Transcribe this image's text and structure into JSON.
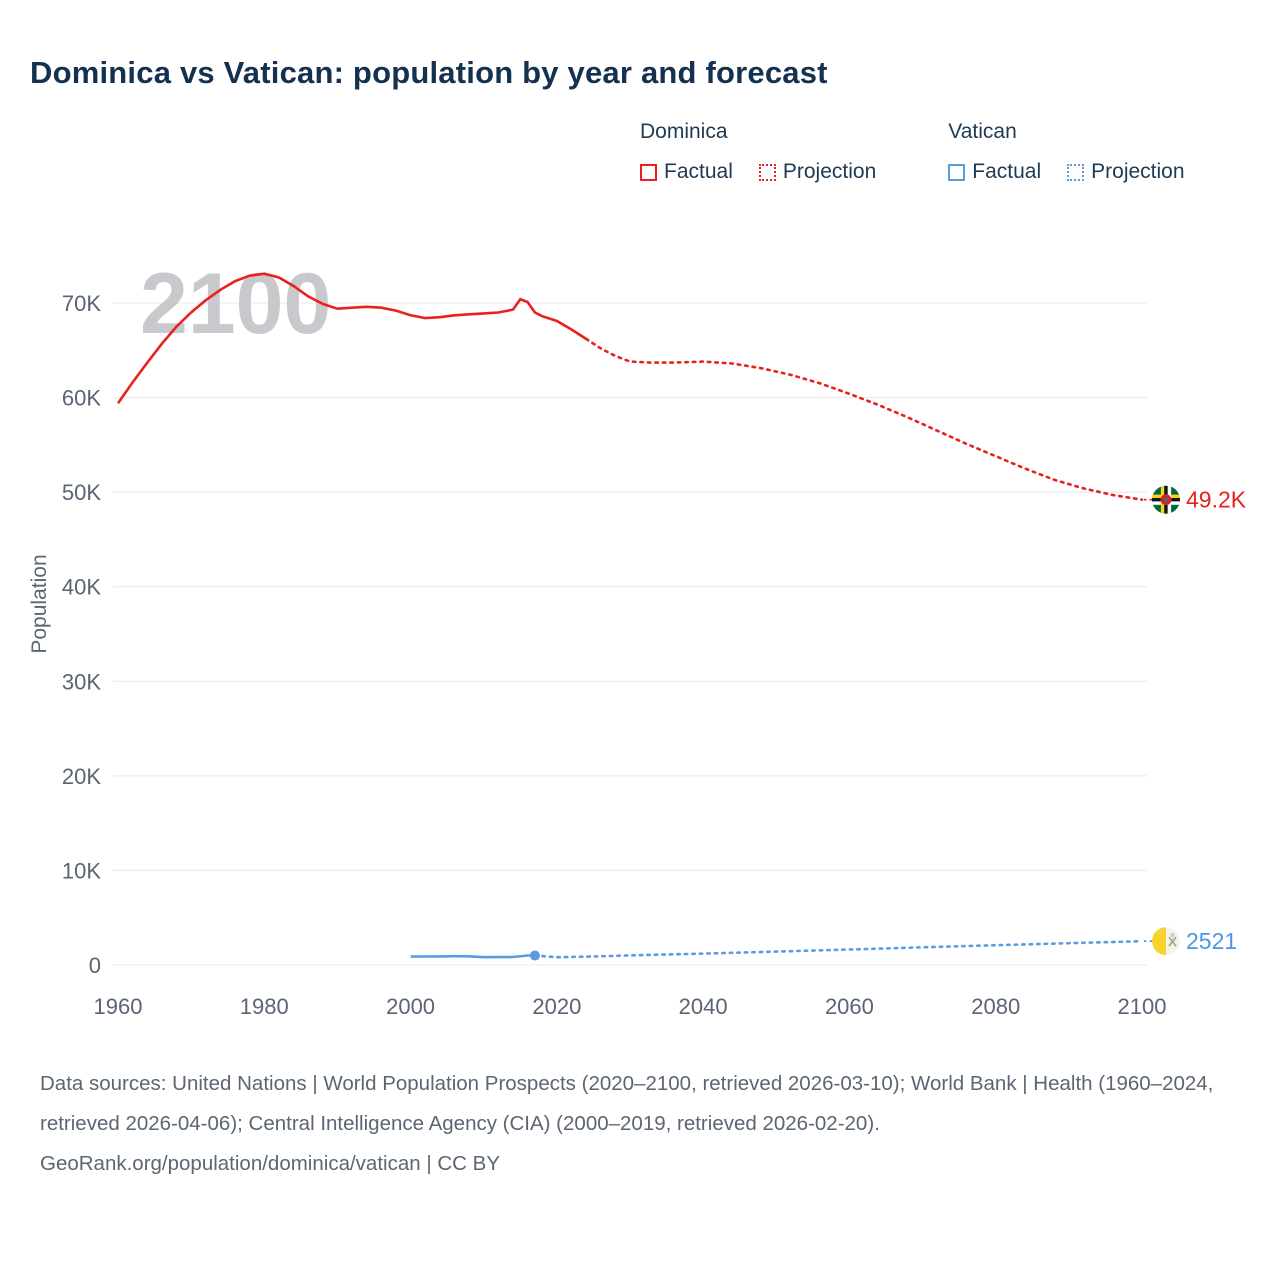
{
  "page": {
    "title": "Dominica vs Vatican: population by year and forecast"
  },
  "legend": {
    "groups": [
      {
        "name": "Dominica",
        "color": "#e8211d",
        "items": [
          {
            "label": "Factual",
            "style": "solid"
          },
          {
            "label": "Projection",
            "style": "dotted"
          }
        ]
      },
      {
        "name": "Vatican",
        "color": "#5b9ce0",
        "items": [
          {
            "label": "Factual",
            "style": "solid"
          },
          {
            "label": "Projection",
            "style": "dotted"
          }
        ]
      }
    ]
  },
  "footer": {
    "sources_line": "Data sources: United Nations | World Population Prospects (2020–2100, retrieved 2026-03-10); World Bank | Health (1960–2024, retrieved 2026-04-06); Central Intelligence Agency (CIA) (2000–2019, retrieved 2026-02-20).",
    "attribution_line": "GeoRank.org/population/dominica/vatican | CC BY"
  },
  "chart_data": {
    "type": "line",
    "title": "Dominica vs Vatican: population by year and forecast",
    "xlabel": "",
    "ylabel": "Population",
    "watermark": "2100",
    "grid": true,
    "x_range": [
      1960,
      2100
    ],
    "y_range": [
      0,
      70000
    ],
    "xticks": [
      1960,
      1980,
      2000,
      2020,
      2040,
      2060,
      2080,
      2100
    ],
    "yticks": [
      {
        "value": 0,
        "label": "0"
      },
      {
        "value": 10000,
        "label": "10K"
      },
      {
        "value": 20000,
        "label": "20K"
      },
      {
        "value": 30000,
        "label": "30K"
      },
      {
        "value": 40000,
        "label": "40K"
      },
      {
        "value": 50000,
        "label": "50K"
      },
      {
        "value": 60000,
        "label": "60K"
      },
      {
        "value": 70000,
        "label": "70K"
      }
    ],
    "series": [
      {
        "id": "dominica-factual",
        "name": "Dominica Factual",
        "color": "#e8211d",
        "style": "solid",
        "x": [
          1960,
          1962,
          1964,
          1966,
          1968,
          1970,
          1972,
          1974,
          1976,
          1978,
          1980,
          1982,
          1984,
          1986,
          1988,
          1990,
          1992,
          1994,
          1996,
          1998,
          2000,
          2002,
          2004,
          2006,
          2008,
          2010,
          2012,
          2014,
          2015,
          2016,
          2017,
          2018,
          2020,
          2022,
          2024
        ],
        "y": [
          59400,
          61600,
          63700,
          65700,
          67500,
          69000,
          70300,
          71400,
          72300,
          72900,
          73100,
          72700,
          71800,
          70700,
          69900,
          69400,
          69500,
          69600,
          69500,
          69200,
          68700,
          68400,
          68500,
          68700,
          68800,
          68900,
          69000,
          69300,
          70400,
          70100,
          69000,
          68600,
          68100,
          67200,
          66200
        ]
      },
      {
        "id": "dominica-projection",
        "name": "Dominica Projection",
        "color": "#e8211d",
        "style": "dotted",
        "x": [
          2024,
          2026,
          2028,
          2030,
          2033,
          2036,
          2040,
          2044,
          2048,
          2052,
          2056,
          2060,
          2064,
          2068,
          2072,
          2076,
          2080,
          2084,
          2088,
          2092,
          2096,
          2100
        ],
        "y": [
          66200,
          65200,
          64400,
          63800,
          63700,
          63700,
          63800,
          63600,
          63100,
          62400,
          61500,
          60400,
          59200,
          57900,
          56500,
          55100,
          53800,
          52500,
          51300,
          50400,
          49700,
          49200
        ]
      },
      {
        "id": "vatican-factual",
        "name": "Vatican Factual",
        "color": "#5b9ce0",
        "style": "solid",
        "x": [
          2000,
          2002,
          2004,
          2006,
          2008,
          2010,
          2012,
          2014,
          2016,
          2017
        ],
        "y": [
          890,
          900,
          910,
          930,
          920,
          830,
          840,
          850,
          1000,
          1000
        ]
      },
      {
        "id": "vatican-projection",
        "name": "Vatican Projection",
        "color": "#5b9ce0",
        "style": "dotted",
        "x": [
          2017,
          2020,
          2025,
          2030,
          2040,
          2050,
          2060,
          2070,
          2080,
          2090,
          2100
        ],
        "y": [
          1000,
          820,
          900,
          1010,
          1210,
          1420,
          1640,
          1870,
          2090,
          2310,
          2521
        ]
      }
    ],
    "markers": [
      {
        "type": "dot",
        "x": 2017,
        "y": 1000,
        "color": "#5b9ce0"
      },
      {
        "type": "flag-dominica",
        "x": 2100,
        "y": 49200,
        "label": "49.2K",
        "label_color": "#e8211d"
      },
      {
        "type": "flag-vatican",
        "x": 2100,
        "y": 2521,
        "label": "2521",
        "label_color": "#4a97e4"
      }
    ]
  }
}
